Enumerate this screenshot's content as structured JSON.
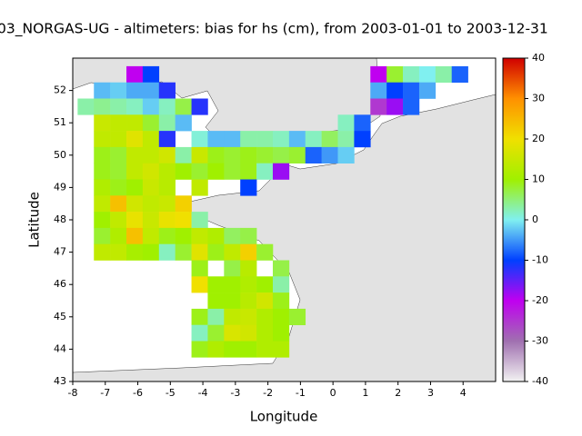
{
  "chart_data": {
    "type": "heatmap",
    "title": "03_NORGAS-UG - altimeters: bias for hs (cm), from 2003-01-01 to 2003-12-31",
    "x_label": "Longitude",
    "y_label": "Latitude",
    "xlim": [
      -8,
      5
    ],
    "ylim": [
      43,
      53
    ],
    "xticks": [
      -8,
      -7,
      -6,
      -5,
      -4,
      -3,
      -2,
      -1,
      0,
      1,
      2,
      3,
      4
    ],
    "yticks": [
      43,
      44,
      45,
      46,
      47,
      48,
      49,
      50,
      51,
      52
    ],
    "cell_size": 0.5,
    "colorbar": {
      "lim": [
        -40,
        40
      ],
      "ticks": [
        -40,
        -30,
        -20,
        -10,
        0,
        10,
        20,
        30,
        40
      ]
    },
    "colormap": [
      "#f2f2f2",
      "#a070b0",
      "#c000f0",
      "#0040ff",
      "#80f0f0",
      "#a0f000",
      "#f0e000",
      "#ff9000",
      "#d00000"
    ],
    "x": [
      -6.1,
      -5.6,
      1.4,
      1.9,
      2.4,
      2.9,
      3.4,
      3.9,
      -7.1,
      -6.6,
      -6.1,
      -5.6,
      -5.1,
      1.4,
      1.9,
      2.4,
      2.9,
      -7.6,
      -7.1,
      -6.6,
      -6.1,
      -5.6,
      -5.1,
      -4.6,
      -4.1,
      1.4,
      1.9,
      2.4,
      -7.1,
      -6.6,
      -6.1,
      -5.6,
      -5.1,
      -4.6,
      0.4,
      0.9,
      -7.1,
      -6.6,
      -6.1,
      -5.6,
      -5.1,
      -4.1,
      -3.6,
      -3.1,
      -2.6,
      -2.1,
      -1.6,
      -1.1,
      -0.6,
      -0.1,
      0.4,
      0.9,
      -7.1,
      -6.6,
      -6.1,
      -5.6,
      -5.1,
      -4.6,
      -4.1,
      -3.6,
      -3.1,
      -2.6,
      -2.1,
      -1.6,
      -1.1,
      -0.6,
      -0.1,
      0.4,
      -7.1,
      -6.6,
      -6.1,
      -5.6,
      -5.1,
      -4.6,
      -4.1,
      -3.6,
      -3.1,
      -2.6,
      -2.1,
      -1.6,
      -7.1,
      -6.6,
      -6.1,
      -5.6,
      -5.1,
      -4.1,
      -2.6,
      -7.1,
      -6.6,
      -6.1,
      -5.6,
      -5.1,
      -4.6,
      -7.1,
      -6.6,
      -6.1,
      -5.6,
      -5.1,
      -4.6,
      -4.1,
      -7.1,
      -6.6,
      -6.1,
      -5.6,
      -5.1,
      -4.6,
      -4.1,
      -3.6,
      -3.1,
      -2.6,
      -7.1,
      -6.6,
      -6.1,
      -5.6,
      -5.1,
      -4.6,
      -4.1,
      -3.6,
      -3.1,
      -2.6,
      -2.1,
      -4.1,
      -3.1,
      -2.6,
      -1.6,
      -4.1,
      -3.6,
      -3.1,
      -2.6,
      -2.1,
      -1.6,
      -3.6,
      -3.1,
      -2.6,
      -2.1,
      -1.6,
      -4.1,
      -3.6,
      -3.1,
      -2.6,
      -2.1,
      -1.6,
      -1.1,
      -4.1,
      -3.6,
      -3.1,
      -2.6,
      -2.1,
      -1.6,
      -4.1,
      -3.6,
      -3.1,
      -2.6,
      -2.1,
      -1.6
    ],
    "y": [
      52.5,
      52.5,
      52.5,
      52.5,
      52.5,
      52.5,
      52.5,
      52.5,
      52,
      52,
      52,
      52,
      52,
      52,
      52,
      52,
      52,
      51.5,
      51.5,
      51.5,
      51.5,
      51.5,
      51.5,
      51.5,
      51.5,
      51.5,
      51.5,
      51.5,
      51,
      51,
      51,
      51,
      51,
      51,
      51,
      51,
      50.5,
      50.5,
      50.5,
      50.5,
      50.5,
      50.5,
      50.5,
      50.5,
      50.5,
      50.5,
      50.5,
      50.5,
      50.5,
      50.5,
      50.5,
      50.5,
      50,
      50,
      50,
      50,
      50,
      50,
      50,
      50,
      50,
      50,
      50,
      50,
      50,
      50,
      50,
      50,
      49.5,
      49.5,
      49.5,
      49.5,
      49.5,
      49.5,
      49.5,
      49.5,
      49.5,
      49.5,
      49.5,
      49.5,
      49,
      49,
      49,
      49,
      49,
      49,
      49,
      48.5,
      48.5,
      48.5,
      48.5,
      48.5,
      48.5,
      48,
      48,
      48,
      48,
      48,
      48,
      48,
      47.5,
      47.5,
      47.5,
      47.5,
      47.5,
      47.5,
      47.5,
      47.5,
      47.5,
      47.5,
      47,
      47,
      47,
      47,
      47,
      47,
      47,
      47,
      47,
      47,
      47,
      46.5,
      46.5,
      46.5,
      46.5,
      46,
      46,
      46,
      46,
      46,
      46,
      45.5,
      45.5,
      45.5,
      45.5,
      45.5,
      45,
      45,
      45,
      45,
      45,
      45,
      45,
      44.5,
      44.5,
      44.5,
      44.5,
      44.5,
      44.5,
      44,
      44,
      44,
      44,
      44,
      44
    ],
    "values": [
      -20,
      -10,
      -20,
      8,
      2,
      0,
      3,
      -8,
      -3,
      -2,
      -4,
      -4,
      -12,
      -4,
      -10,
      -8,
      -4,
      3,
      4,
      3,
      2,
      -2,
      2,
      7,
      -12,
      -25,
      -18,
      -8,
      15,
      14,
      14,
      8,
      3,
      -3,
      2,
      -8,
      14,
      14,
      18,
      14,
      -12,
      1,
      -3,
      -3,
      3,
      3,
      2,
      -3,
      2,
      6,
      3,
      -10,
      9,
      8,
      14,
      14,
      16,
      3,
      15,
      9,
      8,
      9,
      8,
      7,
      8,
      -8,
      -5,
      -2,
      9,
      8,
      14,
      16,
      13,
      10,
      8,
      10,
      8,
      9,
      2,
      -18,
      12,
      9,
      10,
      15,
      13,
      14,
      -10,
      14,
      24,
      16,
      14,
      15,
      22,
      10,
      14,
      19,
      15,
      19,
      20,
      3,
      8,
      12,
      24,
      14,
      9,
      10,
      14,
      12,
      6,
      7,
      14,
      14,
      11,
      10,
      2,
      8,
      18,
      9,
      14,
      22,
      8,
      9,
      7,
      13,
      7,
      20,
      10,
      10,
      12,
      10,
      3,
      10,
      10,
      13,
      16,
      9,
      9,
      3,
      14,
      15,
      12,
      10,
      8,
      2,
      8,
      17,
      16,
      12,
      10,
      9,
      12,
      10,
      10,
      12,
      12
    ]
  }
}
